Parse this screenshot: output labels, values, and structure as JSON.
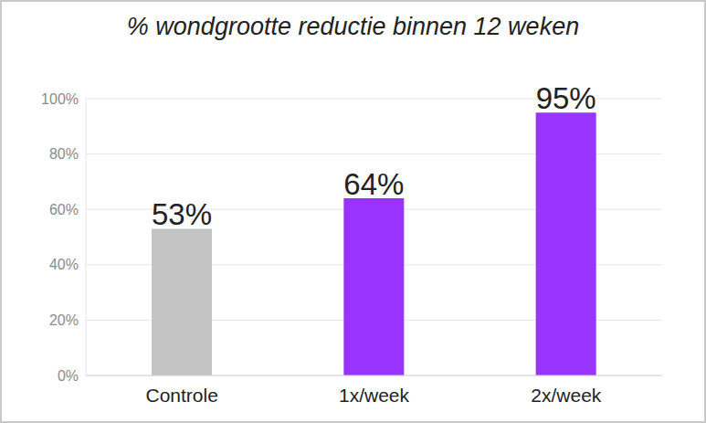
{
  "chart_data": {
    "type": "bar",
    "title": "% wondgrootte reductie binnen 12 weken",
    "categories": [
      "Controle",
      "1x/week",
      "2x/week"
    ],
    "values": [
      53,
      64,
      95
    ],
    "value_labels": [
      "53%",
      "64%",
      "95%"
    ],
    "colors": [
      "#c4c4c4",
      "#9933ff",
      "#9933ff"
    ],
    "ylim": [
      0,
      100
    ],
    "yticks": [
      {
        "value": 0,
        "label": "0%"
      },
      {
        "value": 20,
        "label": "20%"
      },
      {
        "value": 40,
        "label": "40%"
      },
      {
        "value": 60,
        "label": "60%"
      },
      {
        "value": 80,
        "label": "80%"
      },
      {
        "value": 100,
        "label": "100%"
      }
    ],
    "grid": true,
    "data_labels": true
  }
}
